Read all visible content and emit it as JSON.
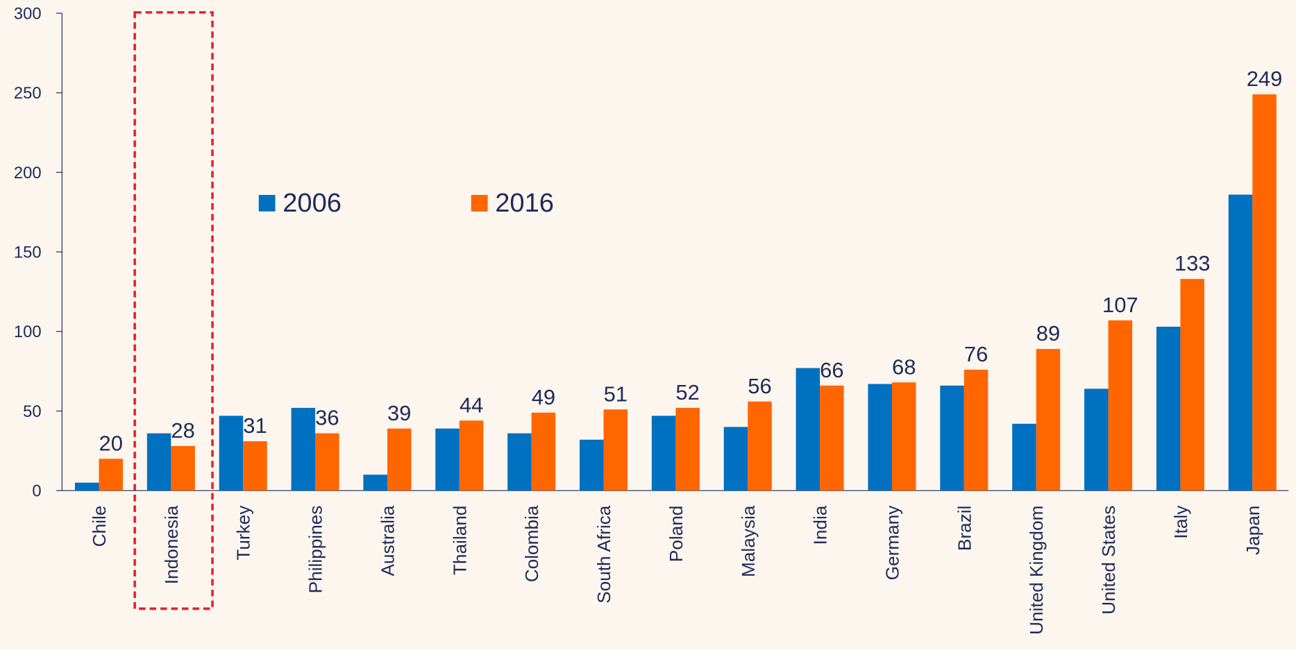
{
  "chart_data": {
    "type": "bar",
    "categories": [
      "Chile",
      "Indonesia",
      "Turkey",
      "Philippines",
      "Australia",
      "Thailand",
      "Colombia",
      "South Africa",
      "Poland",
      "Malaysia",
      "India",
      "Germany",
      "Brazil",
      "United Kingdom",
      "United States",
      "Italy",
      "Japan"
    ],
    "series": [
      {
        "name": "2006",
        "color": "#0070c0",
        "show_labels": false,
        "values": [
          5,
          36,
          47,
          52,
          10,
          39,
          36,
          32,
          47,
          40,
          77,
          67,
          66,
          42,
          64,
          103,
          186
        ]
      },
      {
        "name": "2016",
        "color": "#ff6600",
        "show_labels": true,
        "values": [
          20,
          28,
          31,
          36,
          39,
          44,
          49,
          51,
          52,
          56,
          66,
          68,
          76,
          89,
          107,
          133,
          249
        ]
      }
    ],
    "ylim": [
      0,
      300
    ],
    "yticks": [
      0,
      50,
      100,
      150,
      200,
      250,
      300
    ],
    "grid": false
  }
}
